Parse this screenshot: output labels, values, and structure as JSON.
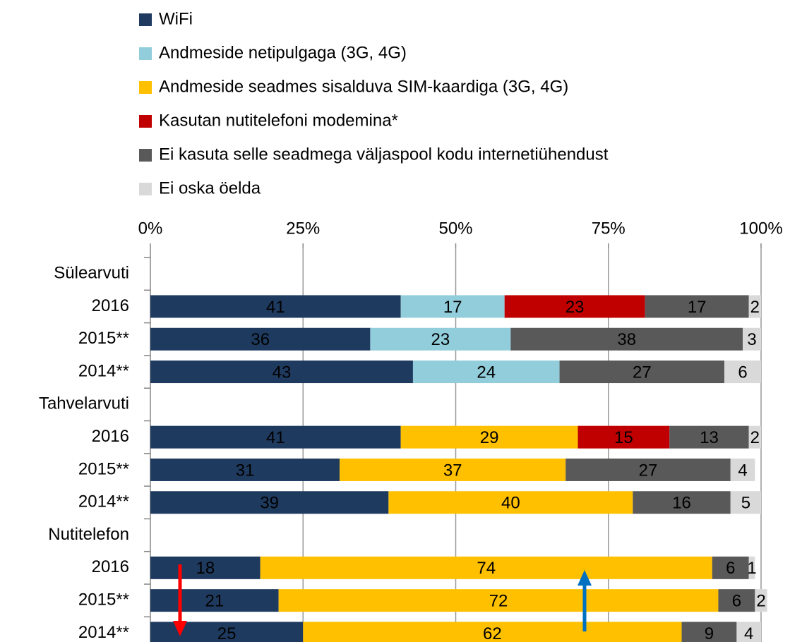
{
  "chart_data": {
    "type": "stacked_barh",
    "categories": [
      "Sülearvuti",
      "2016",
      "2015**",
      "2014**",
      "Tahvelarvuti",
      "2016",
      "2015**",
      "2014**",
      "Nutitelefon",
      "2016",
      "2015**",
      "2014**"
    ],
    "series": [
      {
        "name": "WiFi",
        "color": "#1f3a5f",
        "label_color": "#ffffff",
        "values": [
          null,
          41,
          36,
          43,
          null,
          41,
          31,
          39,
          null,
          18,
          21,
          25
        ]
      },
      {
        "name": "Andmeside netipulgaga (3G, 4G)",
        "color": "#92cddc",
        "label_color": "#000000",
        "values": [
          null,
          17,
          23,
          24,
          null,
          null,
          null,
          null,
          null,
          null,
          null,
          null
        ]
      },
      {
        "name": "Andmeside seadmes sisalduva SIM-kaardiga (3G, 4G)",
        "color": "#ffc000",
        "label_color": "#000000",
        "values": [
          null,
          null,
          null,
          null,
          null,
          29,
          37,
          40,
          null,
          74,
          72,
          62
        ]
      },
      {
        "name": "Kasutan nutitelefoni modemina*",
        "color": "#c00000",
        "label_color": "#ffffff",
        "values": [
          null,
          23,
          null,
          null,
          null,
          15,
          null,
          null,
          null,
          null,
          null,
          null
        ]
      },
      {
        "name": "Ei kasuta selle seadmega väljaspool kodu internetiühendust",
        "color": "#595959",
        "label_color": "#ffffff",
        "values": [
          null,
          17,
          38,
          27,
          null,
          13,
          27,
          16,
          null,
          6,
          6,
          9
        ]
      },
      {
        "name": "Ei oska öelda",
        "color": "#d9d9d9",
        "label_color": "#000000",
        "values": [
          null,
          2,
          3,
          6,
          null,
          2,
          4,
          5,
          null,
          1,
          2,
          4
        ]
      }
    ],
    "xlim": [
      0,
      100
    ],
    "xticks": [
      {
        "value": 0,
        "label": "0%"
      },
      {
        "value": 25,
        "label": "25%"
      },
      {
        "value": 50,
        "label": "50%"
      },
      {
        "value": 75,
        "label": "75%"
      },
      {
        "value": 100,
        "label": "100%"
      }
    ],
    "grid": true,
    "legend": "top"
  }
}
